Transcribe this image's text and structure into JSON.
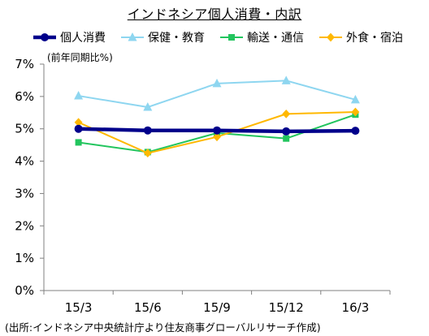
{
  "chart_data": {
    "type": "line",
    "title": "インドネシア個人消費・内訳",
    "unit_label": "(前年同期比%)",
    "categories": [
      "15/3",
      "15/6",
      "15/9",
      "15/12",
      "16/3"
    ],
    "ylim": [
      0,
      7
    ],
    "yticks": [
      "0%",
      "1%",
      "2%",
      "3%",
      "4%",
      "5%",
      "6%",
      "7%"
    ],
    "grid": false,
    "legend_position": "top",
    "series": [
      {
        "name": "個人消費",
        "values": [
          5.0,
          4.95,
          4.95,
          4.92,
          4.94
        ],
        "color": "#00008B",
        "marker": "circle"
      },
      {
        "name": "保健・教育",
        "values": [
          6.02,
          5.67,
          6.4,
          6.49,
          5.9
        ],
        "color": "#8ED6F0",
        "marker": "triangle"
      },
      {
        "name": "輸送・通信",
        "values": [
          4.58,
          4.28,
          4.87,
          4.7,
          5.44
        ],
        "color": "#22C55E",
        "marker": "square"
      },
      {
        "name": "外食・宿泊",
        "values": [
          5.2,
          4.25,
          4.75,
          5.46,
          5.52
        ],
        "color": "#FFB800",
        "marker": "diamond"
      }
    ]
  },
  "source_note": "(出所:インドネシア中央統計庁より住友商事グローバルリサーチ作成)"
}
